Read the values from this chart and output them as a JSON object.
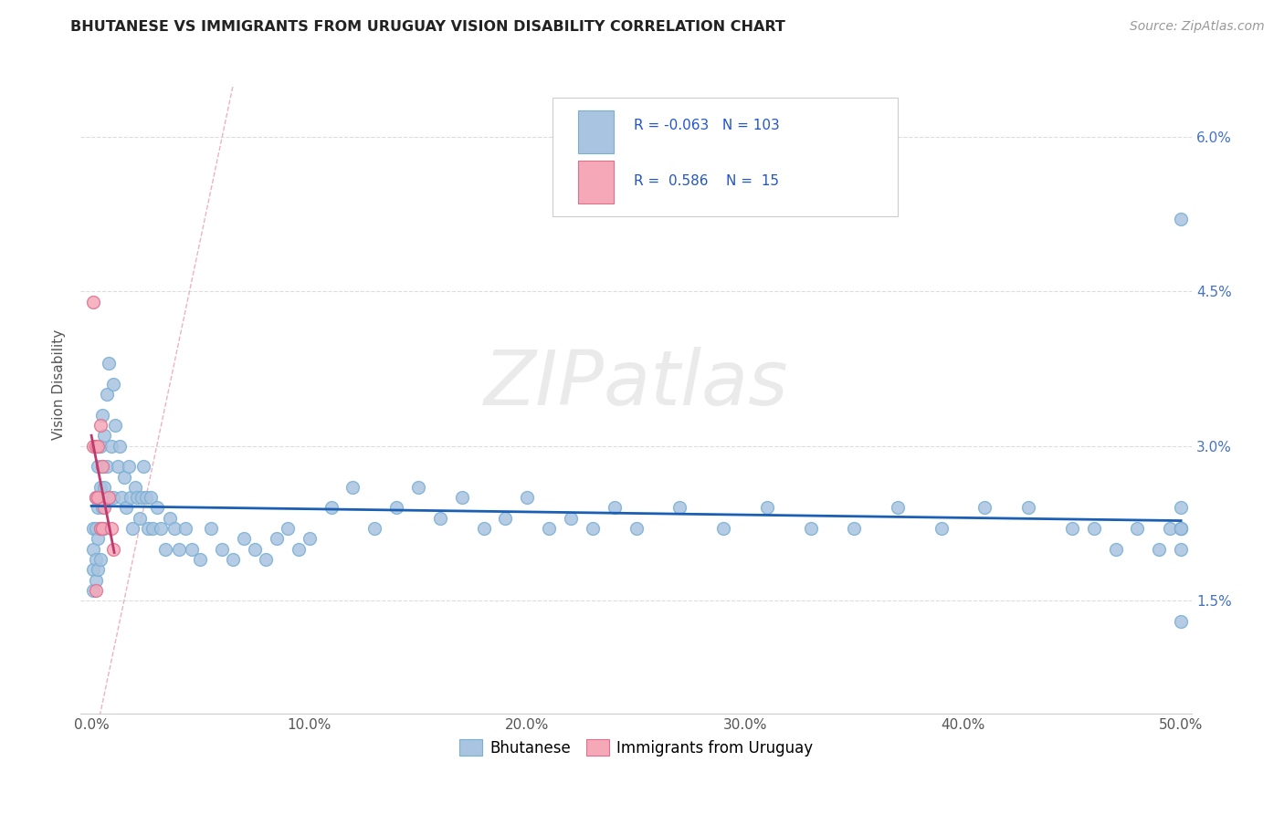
{
  "title": "BHUTANESE VS IMMIGRANTS FROM URUGUAY VISION DISABILITY CORRELATION CHART",
  "source": "Source: ZipAtlas.com",
  "xlim": [
    -0.005,
    0.505
  ],
  "ylim": [
    0.004,
    0.068
  ],
  "ylabel": "Vision Disability",
  "legend_label1": "Bhutanese",
  "legend_label2": "Immigrants from Uruguay",
  "R1": "-0.063",
  "N1": "103",
  "R2": "0.586",
  "N2": "15",
  "color1": "#a8c4e0",
  "color2": "#f4a8b8",
  "trend1_color": "#1a5fb4",
  "trend2_color": "#c0386c",
  "diagonal_color": "#e8a0b0",
  "watermark": "ZIPatlas",
  "background": "#ffffff",
  "bhutanese_x": [
    0.001,
    0.001,
    0.001,
    0.001,
    0.002,
    0.002,
    0.002,
    0.002,
    0.003,
    0.003,
    0.003,
    0.003,
    0.004,
    0.004,
    0.004,
    0.004,
    0.005,
    0.005,
    0.005,
    0.006,
    0.006,
    0.006,
    0.007,
    0.007,
    0.008,
    0.008,
    0.009,
    0.01,
    0.01,
    0.011,
    0.012,
    0.013,
    0.014,
    0.015,
    0.016,
    0.017,
    0.018,
    0.019,
    0.02,
    0.021,
    0.022,
    0.023,
    0.024,
    0.025,
    0.026,
    0.027,
    0.028,
    0.03,
    0.032,
    0.034,
    0.036,
    0.038,
    0.04,
    0.043,
    0.046,
    0.05,
    0.055,
    0.06,
    0.065,
    0.07,
    0.075,
    0.08,
    0.085,
    0.09,
    0.095,
    0.1,
    0.11,
    0.12,
    0.13,
    0.14,
    0.15,
    0.16,
    0.17,
    0.18,
    0.19,
    0.2,
    0.21,
    0.22,
    0.23,
    0.24,
    0.25,
    0.27,
    0.29,
    0.31,
    0.33,
    0.35,
    0.37,
    0.39,
    0.41,
    0.43,
    0.45,
    0.46,
    0.47,
    0.48,
    0.49,
    0.495,
    0.5,
    0.5,
    0.5,
    0.5,
    0.5,
    0.5,
    0.5
  ],
  "bhutanese_y": [
    0.022,
    0.02,
    0.018,
    0.016,
    0.025,
    0.022,
    0.019,
    0.017,
    0.028,
    0.024,
    0.021,
    0.018,
    0.03,
    0.026,
    0.022,
    0.019,
    0.033,
    0.028,
    0.024,
    0.031,
    0.026,
    0.022,
    0.035,
    0.028,
    0.038,
    0.025,
    0.03,
    0.036,
    0.025,
    0.032,
    0.028,
    0.03,
    0.025,
    0.027,
    0.024,
    0.028,
    0.025,
    0.022,
    0.026,
    0.025,
    0.023,
    0.025,
    0.028,
    0.025,
    0.022,
    0.025,
    0.022,
    0.024,
    0.022,
    0.02,
    0.023,
    0.022,
    0.02,
    0.022,
    0.02,
    0.019,
    0.022,
    0.02,
    0.019,
    0.021,
    0.02,
    0.019,
    0.021,
    0.022,
    0.02,
    0.021,
    0.024,
    0.026,
    0.022,
    0.024,
    0.026,
    0.023,
    0.025,
    0.022,
    0.023,
    0.025,
    0.022,
    0.023,
    0.022,
    0.024,
    0.022,
    0.024,
    0.022,
    0.024,
    0.022,
    0.022,
    0.024,
    0.022,
    0.024,
    0.024,
    0.022,
    0.022,
    0.02,
    0.022,
    0.02,
    0.022,
    0.024,
    0.022,
    0.02,
    0.022,
    0.022,
    0.013,
    0.052
  ],
  "uruguay_x": [
    0.001,
    0.001,
    0.002,
    0.002,
    0.002,
    0.003,
    0.003,
    0.004,
    0.004,
    0.005,
    0.005,
    0.006,
    0.008,
    0.009,
    0.01
  ],
  "uruguay_y": [
    0.044,
    0.03,
    0.03,
    0.025,
    0.016,
    0.03,
    0.025,
    0.032,
    0.022,
    0.028,
    0.022,
    0.024,
    0.025,
    0.022,
    0.02
  ]
}
